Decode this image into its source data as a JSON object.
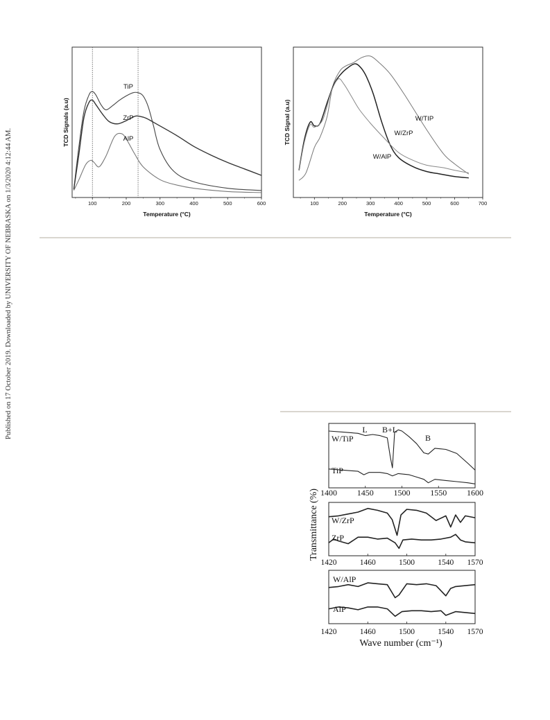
{
  "watermark": "Published on 17 October 2019. Downloaded by UNIVERSITY OF NEBRASKA on 1/3/2020 4:12:44 AM.",
  "chart_data": [
    {
      "type": "line",
      "xlabel": "Temperature (°C)",
      "ylabel": "TCD Signals (a.u)",
      "xlim": [
        40,
        600
      ],
      "x_ticks": [
        "100",
        "200",
        "300",
        "400",
        "500",
        "600"
      ],
      "reference_lines_x": [
        100,
        235
      ],
      "series": [
        {
          "name": "TiP",
          "x": [
            45,
            60,
            75,
            90,
            100,
            110,
            125,
            140,
            160,
            180,
            200,
            220,
            235,
            250,
            265,
            280,
            300,
            340,
            400,
            500,
            600
          ],
          "y": [
            0.05,
            0.45,
            0.78,
            0.93,
            0.96,
            0.93,
            0.84,
            0.79,
            0.83,
            0.88,
            0.92,
            0.95,
            0.95,
            0.92,
            0.82,
            0.65,
            0.42,
            0.22,
            0.12,
            0.06,
            0.04
          ]
        },
        {
          "name": "ZrP",
          "x": [
            45,
            60,
            75,
            90,
            100,
            110,
            130,
            150,
            175,
            200,
            225,
            240,
            260,
            300,
            350,
            400,
            450,
            500,
            550,
            600
          ],
          "y": [
            0.05,
            0.38,
            0.72,
            0.86,
            0.88,
            0.84,
            0.75,
            0.68,
            0.66,
            0.69,
            0.73,
            0.73,
            0.71,
            0.64,
            0.55,
            0.45,
            0.37,
            0.3,
            0.24,
            0.18
          ]
        },
        {
          "name": "AlP",
          "x": [
            45,
            60,
            80,
            95,
            105,
            120,
            140,
            165,
            185,
            200,
            225,
            250,
            300,
            350,
            400,
            500,
            600
          ],
          "y": [
            0.04,
            0.14,
            0.28,
            0.32,
            0.3,
            0.26,
            0.36,
            0.54,
            0.57,
            0.52,
            0.38,
            0.26,
            0.14,
            0.09,
            0.06,
            0.03,
            0.02
          ]
        }
      ]
    },
    {
      "type": "line",
      "xlabel": "Temperature (°C)",
      "ylabel": "TCD Signal (a.u)",
      "xlim": [
        25,
        700
      ],
      "x_ticks": [
        "100",
        "200",
        "300",
        "400",
        "500",
        "600",
        "700"
      ],
      "series": [
        {
          "name": "W/TIP",
          "x": [
            45,
            70,
            100,
            120,
            145,
            165,
            190,
            210,
            240,
            270,
            300,
            330,
            370,
            420,
            500,
            560,
            600,
            650
          ],
          "y": [
            0.02,
            0.08,
            0.28,
            0.36,
            0.52,
            0.76,
            0.88,
            0.92,
            0.95,
            0.99,
            1.0,
            0.95,
            0.86,
            0.7,
            0.42,
            0.23,
            0.15,
            0.07
          ]
        },
        {
          "name": "W/ZrP",
          "x": [
            45,
            65,
            85,
            100,
            120,
            145,
            170,
            195,
            220,
            245,
            265,
            285,
            310,
            340,
            370,
            400,
            450,
            500,
            550,
            600,
            650
          ],
          "y": [
            0.1,
            0.35,
            0.48,
            0.45,
            0.47,
            0.63,
            0.78,
            0.86,
            0.91,
            0.94,
            0.91,
            0.84,
            0.7,
            0.48,
            0.3,
            0.2,
            0.13,
            0.09,
            0.07,
            0.05,
            0.04
          ]
        },
        {
          "name": "W/AlP",
          "x": [
            45,
            65,
            85,
            100,
            130,
            160,
            185,
            205,
            230,
            260,
            300,
            350,
            400,
            450,
            500,
            560,
            600,
            650
          ],
          "y": [
            0.1,
            0.33,
            0.46,
            0.44,
            0.5,
            0.72,
            0.82,
            0.78,
            0.69,
            0.58,
            0.47,
            0.35,
            0.24,
            0.18,
            0.14,
            0.12,
            0.1,
            0.08
          ]
        }
      ]
    },
    {
      "type": "line",
      "ylabel": "Transmittance (%)",
      "xlabel": "Wave number (cm⁻¹)",
      "panels": [
        {
          "xlim": [
            1400,
            1600
          ],
          "x_ticks": [
            "1400",
            "1450",
            "1500",
            "1550",
            "1600"
          ],
          "annotations": [
            "L",
            "B+L",
            "B"
          ],
          "series": [
            {
              "name": "W/TiP",
              "x": [
                1400,
                1420,
                1440,
                1450,
                1460,
                1470,
                1480,
                1484,
                1487,
                1490,
                1495,
                1500,
                1510,
                1520,
                1530,
                1536,
                1545,
                1560,
                1575,
                1590,
                1600
              ],
              "y": [
                0.94,
                0.92,
                0.9,
                0.86,
                0.88,
                0.86,
                0.82,
                0.5,
                0.3,
                0.92,
                0.96,
                0.94,
                0.84,
                0.72,
                0.56,
                0.54,
                0.64,
                0.62,
                0.55,
                0.38,
                0.26
              ]
            },
            {
              "name": "TiP",
              "x": [
                1400,
                1420,
                1440,
                1448,
                1455,
                1470,
                1480,
                1487,
                1495,
                1510,
                1520,
                1530,
                1536,
                1545,
                1560,
                1575,
                1590,
                1600
              ],
              "y": [
                0.28,
                0.26,
                0.24,
                0.18,
                0.22,
                0.22,
                0.2,
                0.16,
                0.2,
                0.18,
                0.14,
                0.1,
                0.04,
                0.1,
                0.08,
                0.06,
                0.04,
                0.02
              ]
            }
          ]
        },
        {
          "xlim": [
            1420,
            1570
          ],
          "x_ticks": [
            "1420",
            "1460",
            "1500",
            "1540",
            "1570"
          ],
          "series": [
            {
              "name": "W/ZrP",
              "x": [
                1420,
                1430,
                1440,
                1450,
                1460,
                1470,
                1480,
                1485,
                1490,
                1494,
                1500,
                1510,
                1520,
                1530,
                1540,
                1545,
                1550,
                1555,
                1560,
                1570
              ],
              "y": [
                0.78,
                0.8,
                0.84,
                0.88,
                0.96,
                0.92,
                0.86,
                0.72,
                0.38,
                0.82,
                0.94,
                0.92,
                0.86,
                0.7,
                0.8,
                0.56,
                0.82,
                0.66,
                0.8,
                0.76
              ]
            },
            {
              "name": "ZrP",
              "x": [
                1420,
                1425,
                1430,
                1440,
                1450,
                1460,
                1470,
                1480,
                1488,
                1492,
                1496,
                1505,
                1515,
                1525,
                1535,
                1545,
                1550,
                1555,
                1560,
                1570
              ],
              "y": [
                0.22,
                0.3,
                0.26,
                0.2,
                0.34,
                0.34,
                0.3,
                0.32,
                0.22,
                0.1,
                0.28,
                0.3,
                0.28,
                0.28,
                0.3,
                0.34,
                0.4,
                0.28,
                0.24,
                0.22
              ]
            }
          ]
        },
        {
          "xlim": [
            1420,
            1570
          ],
          "x_ticks": [
            "1420",
            "1460",
            "1500",
            "1540",
            "1570"
          ],
          "series": [
            {
              "name": "W/AlP",
              "x": [
                1420,
                1430,
                1440,
                1450,
                1460,
                1470,
                1480,
                1488,
                1492,
                1500,
                1510,
                1520,
                1530,
                1540,
                1545,
                1550,
                1560,
                1570
              ],
              "y": [
                0.72,
                0.74,
                0.78,
                0.74,
                0.82,
                0.8,
                0.78,
                0.5,
                0.56,
                0.8,
                0.78,
                0.8,
                0.76,
                0.54,
                0.7,
                0.74,
                0.76,
                0.78
              ]
            },
            {
              "name": "AlP",
              "x": [
                1420,
                1430,
                1440,
                1450,
                1460,
                1470,
                1480,
                1488,
                1495,
                1505,
                1515,
                1525,
                1535,
                1540,
                1550,
                1560,
                1570
              ],
              "y": [
                0.26,
                0.3,
                0.28,
                0.24,
                0.3,
                0.3,
                0.26,
                0.1,
                0.2,
                0.22,
                0.22,
                0.2,
                0.22,
                0.12,
                0.2,
                0.18,
                0.16
              ]
            }
          ]
        }
      ]
    }
  ]
}
